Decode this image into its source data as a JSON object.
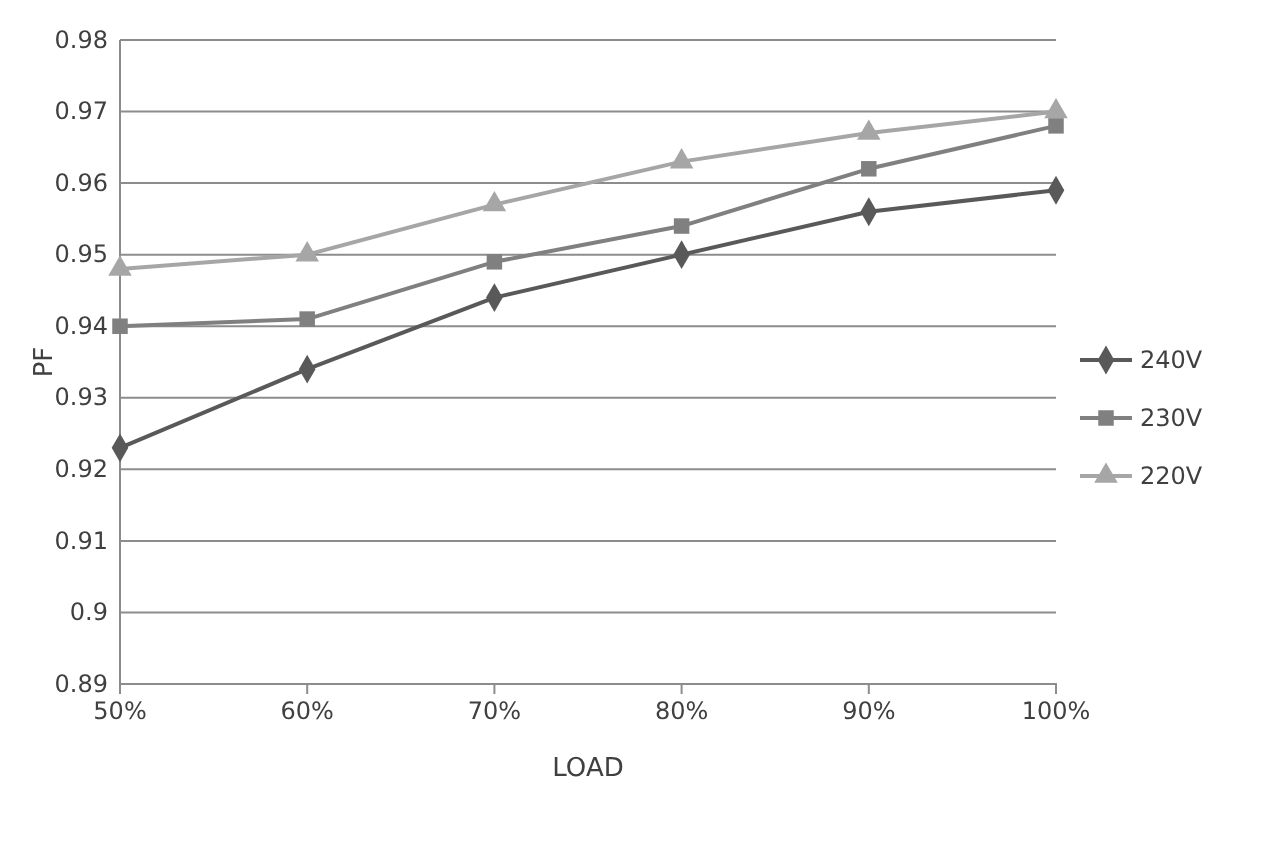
{
  "chart_data": {
    "type": "line",
    "xlabel": "LOAD",
    "ylabel": "PF",
    "categories": [
      "50%",
      "60%",
      "70%",
      "80%",
      "90%",
      "100%"
    ],
    "series": [
      {
        "name": "240V",
        "color": "#595959",
        "marker": "diamond",
        "values": [
          0.923,
          0.934,
          0.944,
          0.95,
          0.956,
          0.959
        ]
      },
      {
        "name": "230V",
        "color": "#808080",
        "marker": "square",
        "values": [
          0.94,
          0.941,
          0.949,
          0.954,
          0.962,
          0.968
        ]
      },
      {
        "name": "220V",
        "color": "#a6a6a6",
        "marker": "triangle",
        "values": [
          0.948,
          0.95,
          0.957,
          0.963,
          0.967,
          0.97
        ]
      }
    ],
    "ylim": [
      0.89,
      0.98
    ],
    "yticks": [
      0.89,
      0.9,
      0.91,
      0.92,
      0.93,
      0.94,
      0.95,
      0.96,
      0.97,
      0.98
    ],
    "grid": "y",
    "legend": "right",
    "line_style": "solid"
  }
}
